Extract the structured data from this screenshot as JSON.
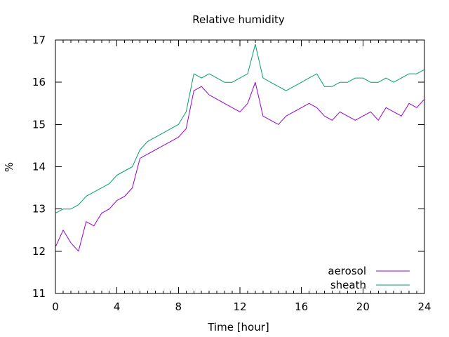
{
  "chart_data": {
    "type": "line",
    "title": "Relative humidity",
    "xlabel": "Time [hour]",
    "ylabel": "%",
    "xlim": [
      0,
      24
    ],
    "ylim": [
      11,
      17
    ],
    "x_ticks": [
      0,
      4,
      8,
      12,
      16,
      20,
      24
    ],
    "y_ticks": [
      11,
      12,
      13,
      14,
      15,
      16,
      17
    ],
    "grid": false,
    "legend_position": "bottom-right",
    "colors": {
      "aerosol": "#9400d3",
      "sheath": "#009e73"
    },
    "series": [
      {
        "name": "aerosol",
        "x": [
          0,
          0.5,
          1,
          1.5,
          2,
          2.5,
          3,
          3.5,
          4,
          4.5,
          5,
          5.5,
          6,
          6.5,
          7,
          7.5,
          8,
          8.5,
          9,
          9.5,
          10,
          10.5,
          11,
          11.5,
          12,
          12.5,
          13,
          13.5,
          14,
          14.5,
          15,
          15.5,
          16,
          16.5,
          17,
          17.5,
          18,
          18.5,
          19,
          19.5,
          20,
          20.5,
          21,
          21.5,
          22,
          22.5,
          23,
          23.5,
          24
        ],
        "values": [
          12.1,
          12.5,
          12.2,
          12.0,
          12.7,
          12.6,
          12.9,
          13.0,
          13.2,
          13.3,
          13.5,
          14.2,
          14.3,
          14.4,
          14.5,
          14.6,
          14.7,
          14.9,
          15.8,
          15.9,
          15.7,
          15.6,
          15.5,
          15.4,
          15.3,
          15.5,
          16.0,
          15.2,
          15.1,
          15.0,
          15.2,
          15.3,
          15.4,
          15.5,
          15.4,
          15.2,
          15.1,
          15.3,
          15.2,
          15.1,
          15.2,
          15.3,
          15.1,
          15.4,
          15.3,
          15.2,
          15.5,
          15.4,
          15.6
        ]
      },
      {
        "name": "sheath",
        "x": [
          0,
          0.5,
          1,
          1.5,
          2,
          2.5,
          3,
          3.5,
          4,
          4.5,
          5,
          5.5,
          6,
          6.5,
          7,
          7.5,
          8,
          8.5,
          9,
          9.5,
          10,
          10.5,
          11,
          11.5,
          12,
          12.5,
          13,
          13.5,
          14,
          14.5,
          15,
          15.5,
          16,
          16.5,
          17,
          17.5,
          18,
          18.5,
          19,
          19.5,
          20,
          20.5,
          21,
          21.5,
          22,
          22.5,
          23,
          23.5,
          24
        ],
        "values": [
          12.9,
          13.0,
          13.0,
          13.1,
          13.3,
          13.4,
          13.5,
          13.6,
          13.8,
          13.9,
          14.0,
          14.4,
          14.6,
          14.7,
          14.8,
          14.9,
          15.0,
          15.3,
          16.2,
          16.1,
          16.2,
          16.1,
          16.0,
          16.0,
          16.1,
          16.2,
          16.9,
          16.1,
          16.0,
          15.9,
          15.8,
          15.9,
          16.0,
          16.1,
          16.2,
          15.9,
          15.9,
          16.0,
          16.0,
          16.1,
          16.1,
          16.0,
          16.0,
          16.1,
          16.0,
          16.1,
          16.2,
          16.2,
          16.3
        ]
      }
    ]
  }
}
